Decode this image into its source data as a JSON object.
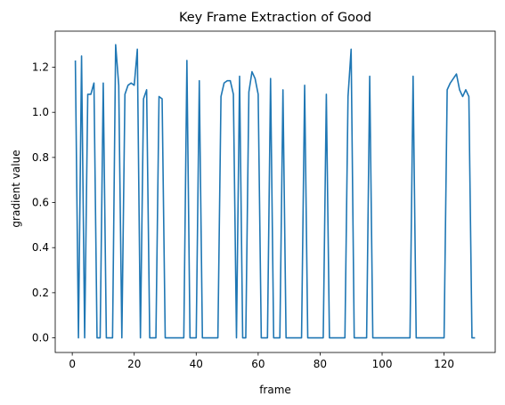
{
  "chart_data": {
    "type": "line",
    "title": "Key Frame Extraction of Good",
    "xlabel": "frame",
    "ylabel": "gradient value",
    "xlim": [
      -5.5,
      136.5
    ],
    "ylim": [
      -0.065,
      1.36
    ],
    "xticks": [
      0,
      20,
      40,
      60,
      80,
      100,
      120
    ],
    "yticks": [
      0.0,
      0.2,
      0.4,
      0.6,
      0.8,
      1.0,
      1.2
    ],
    "grid": false,
    "line_color": "#1f77b4",
    "series": [
      {
        "x": [
          1,
          2,
          3,
          4,
          5,
          6,
          7,
          8,
          9,
          10,
          11,
          12,
          13,
          14,
          15,
          16,
          17,
          18,
          19,
          20,
          21,
          22,
          23,
          24,
          25,
          26,
          27,
          28,
          29,
          30,
          31,
          32,
          33,
          34,
          35,
          36,
          37,
          38,
          39,
          40,
          41,
          42,
          43,
          44,
          45,
          46,
          47,
          48,
          49,
          50,
          51,
          52,
          53,
          54,
          55,
          56,
          57,
          58,
          59,
          60,
          61,
          62,
          63,
          64,
          65,
          66,
          67,
          68,
          69,
          70,
          71,
          72,
          73,
          74,
          75,
          76,
          77,
          78,
          79,
          80,
          81,
          82,
          83,
          84,
          85,
          86,
          87,
          88,
          89,
          90,
          91,
          92,
          93,
          94,
          95,
          96,
          97,
          98,
          99,
          100,
          101,
          102,
          103,
          104,
          105,
          106,
          107,
          108,
          109,
          110,
          111,
          112,
          113,
          114,
          115,
          116,
          117,
          118,
          119,
          120,
          121,
          122,
          123,
          124,
          125,
          126,
          127,
          128,
          129,
          130
        ],
        "y": [
          1.23,
          0,
          1.25,
          0,
          1.08,
          1.08,
          1.13,
          0,
          0,
          1.13,
          0,
          0,
          0,
          1.3,
          1.12,
          0,
          1.08,
          1.12,
          1.13,
          1.12,
          1.28,
          0,
          1.06,
          1.1,
          0,
          0,
          0,
          1.07,
          1.06,
          0,
          0,
          0,
          0,
          0,
          0,
          0,
          1.23,
          0,
          0,
          0,
          1.14,
          0,
          0,
          0,
          0,
          0,
          0,
          1.07,
          1.13,
          1.14,
          1.14,
          1.08,
          0,
          1.16,
          0,
          0,
          1.09,
          1.18,
          1.15,
          1.08,
          0,
          0,
          0,
          1.15,
          0,
          0,
          0,
          1.1,
          0,
          0,
          0,
          0,
          0,
          0,
          1.12,
          0,
          0,
          0,
          0,
          0,
          0,
          1.08,
          0,
          0,
          0,
          0,
          0,
          0,
          1.07,
          1.28,
          0,
          0,
          0,
          0,
          0,
          1.16,
          0,
          0,
          0,
          0,
          0,
          0,
          0,
          0,
          0,
          0,
          0,
          0,
          0,
          1.16,
          0,
          0,
          0,
          0,
          0,
          0,
          0,
          0,
          0,
          0,
          1.1,
          1.13,
          1.15,
          1.17,
          1.1,
          1.07,
          1.1,
          1.07,
          0,
          0
        ]
      }
    ]
  }
}
